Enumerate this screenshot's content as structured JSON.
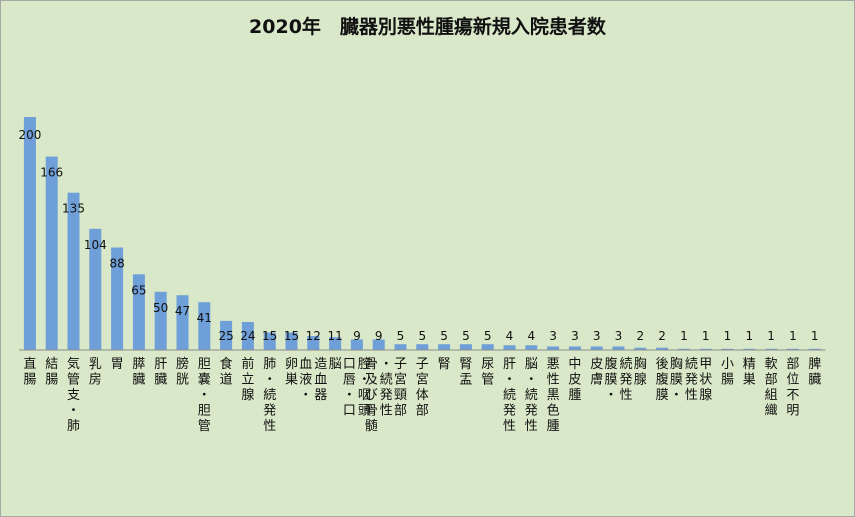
{
  "chart_data": {
    "type": "bar",
    "title": "2020年　臓器別悪性腫瘍新規入院患者数",
    "categories": [
      "直腸",
      "結腸",
      "気管支・肺",
      "乳房",
      "胃",
      "膵臓",
      "肝臓",
      "膀胱",
      "胆嚢・胆管",
      "食道",
      "前立腺",
      "肺・続発性",
      "卵巣",
      "血液・造血器",
      "脳",
      "口唇・口腔・咽頭",
      "骨及び骨髄・続発性",
      "子宮頸部",
      "子宮体部",
      "腎",
      "腎盂",
      "尿管",
      "肝・続発性",
      "脳・続発性",
      "悪性黒色腫",
      "中皮腫",
      "皮膚",
      "腹膜・続発性",
      "胸腺",
      "後腹膜",
      "胸膜・続発性",
      "甲状腺",
      "小腸",
      "精巣",
      "軟部組織",
      "部位不明",
      "脾臓"
    ],
    "values": [
      200,
      166,
      135,
      104,
      88,
      65,
      50,
      47,
      41,
      25,
      24,
      15,
      15,
      12,
      11,
      9,
      9,
      5,
      5,
      5,
      5,
      5,
      4,
      4,
      3,
      3,
      3,
      3,
      2,
      2,
      1,
      1,
      1,
      1,
      1,
      1,
      1
    ],
    "ylim": [
      0,
      200
    ],
    "grid": false,
    "legend": "none",
    "colors": {
      "bar": "#6f9fd8",
      "background": "#d9e8c8",
      "axis": "#8c8c8c",
      "text": "#111111"
    }
  }
}
